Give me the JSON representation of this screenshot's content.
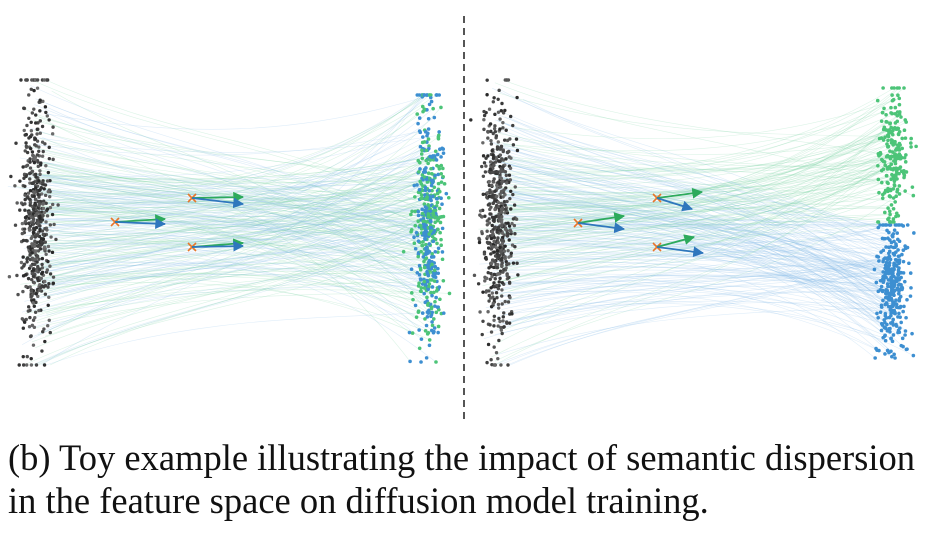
{
  "caption": "(b) Toy example illustrating the impact of semantic dispersion\nin the feature space on diffusion model training.",
  "panels": [
    {
      "id": "left",
      "target_distribution": "mixed",
      "description_hidden": true
    },
    {
      "id": "right",
      "target_distribution": "separated",
      "description_hidden": true
    }
  ],
  "colors": {
    "source": "#3a3a3a",
    "class_green": "#4cc478",
    "class_blue": "#3d8fd1",
    "flow_green": "#7fd3a4",
    "flow_blue": "#8cc0e8",
    "marker": "#e8762b",
    "arrow_green": "#2daa5c",
    "arrow_blue": "#2f77bd",
    "divider": "#555555"
  }
}
